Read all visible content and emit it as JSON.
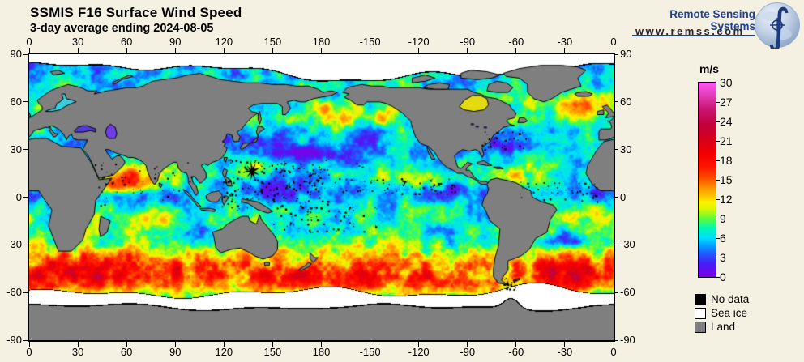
{
  "page": {
    "background": "#f4f0e2"
  },
  "header": {
    "title": "SSMIS F16 Surface Wind Speed",
    "subtitle": "3-day average ending 2024-08-05"
  },
  "branding": {
    "name": "Remote Sensing Systems",
    "url": "www.remss.com",
    "name_color": "#20418f",
    "url_color": "#26262e",
    "integral_glyph": "∫"
  },
  "map": {
    "lon_tick_labels": [
      "0",
      "30",
      "60",
      "90",
      "120",
      "150",
      "180",
      "-150",
      "-120",
      "-90",
      "-60",
      "-30",
      "0"
    ],
    "lat_tick_labels": [
      "90",
      "60",
      "30",
      "0",
      "-30",
      "-60",
      "-90"
    ],
    "frame_color": "#000000",
    "land_color": "#7f7f7f",
    "sea_ice_color": "#ffffff",
    "no_data_color": "#000000",
    "coastline_color": "#000000"
  },
  "colorbar": {
    "unit": "m/s",
    "min": 0,
    "max": 30,
    "tick_values": [
      30,
      27,
      24,
      21,
      18,
      15,
      12,
      9,
      6,
      3,
      0
    ],
    "stops": [
      {
        "v": 0,
        "c": "#7c00e8"
      },
      {
        "v": 2,
        "c": "#4a1cf6"
      },
      {
        "v": 3.5,
        "c": "#2355ff"
      },
      {
        "v": 5,
        "c": "#00a8ff"
      },
      {
        "v": 6,
        "c": "#00dcff"
      },
      {
        "v": 7.5,
        "c": "#00f7b4"
      },
      {
        "v": 9,
        "c": "#5cfa3c"
      },
      {
        "v": 10.5,
        "c": "#d8f800"
      },
      {
        "v": 11.5,
        "c": "#fff200"
      },
      {
        "v": 12.5,
        "c": "#ffc400"
      },
      {
        "v": 14,
        "c": "#ff8800"
      },
      {
        "v": 15.5,
        "c": "#ff4400"
      },
      {
        "v": 17,
        "c": "#ff1500"
      },
      {
        "v": 19,
        "c": "#f30000"
      },
      {
        "v": 21,
        "c": "#d90016"
      },
      {
        "v": 23.5,
        "c": "#c2003c"
      },
      {
        "v": 26,
        "c": "#cb1673"
      },
      {
        "v": 28,
        "c": "#e23cb4"
      },
      {
        "v": 30,
        "c": "#fb59f5"
      }
    ]
  },
  "legend": {
    "items": [
      {
        "label": "No data",
        "color": "#000000"
      },
      {
        "label": "Sea ice",
        "color": "#ffffff"
      },
      {
        "label": "Land",
        "color": "#7f7f7f"
      }
    ]
  },
  "chart_data": {
    "type": "heatmap",
    "title": "SSMIS F16 Surface Wind Speed",
    "subtitle": "3-day average ending 2024-08-05",
    "variable": "ocean surface wind speed",
    "units": "m/s",
    "scale_range": [
      0,
      30
    ],
    "colorbar_ticks": [
      30,
      27,
      24,
      21,
      18,
      15,
      12,
      9,
      6,
      3,
      0
    ],
    "x_axis": {
      "type": "longitude_deg",
      "tick_values": [
        0,
        30,
        60,
        90,
        120,
        150,
        180,
        -150,
        -120,
        -90,
        -60,
        -30,
        0
      ]
    },
    "y_axis": {
      "type": "latitude_deg",
      "tick_values": [
        90,
        60,
        30,
        0,
        -30,
        -60,
        -90
      ]
    },
    "overlay_categories": [
      "No data",
      "Sea ice",
      "Land"
    ],
    "notable_features": [
      {
        "feature": "circumpolar high-wind band 12-25 m/s",
        "region": "Southern Ocean 35S-58S"
      },
      {
        "feature": "storm winds 12-18 m/s",
        "region": "North Atlantic near Iceland/UK 50-65N"
      },
      {
        "feature": "monsoon winds 10-15 m/s",
        "region": "Arabian Sea"
      },
      {
        "feature": "black no-data patch (tropical cyclone rain flag)",
        "region": "western North Pacific ~15N 135E"
      },
      {
        "feature": "light winds 0-5 m/s",
        "region": "west Pacific warm pool and NE Pacific subtropics"
      },
      {
        "feature": "sea ice",
        "region": "Arctic cap and Antarctic fringe"
      }
    ]
  }
}
